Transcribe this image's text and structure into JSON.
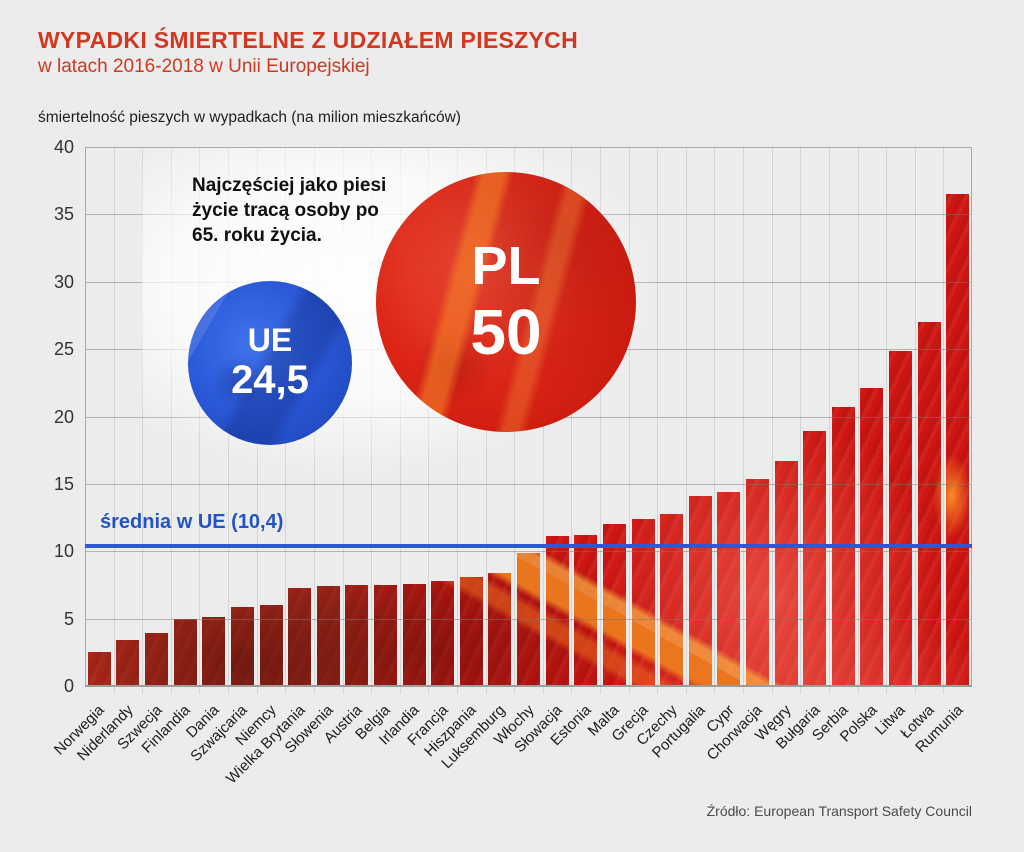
{
  "header": {
    "title": "WYPADKI ŚMIERTELNE Z UDZIAŁEM PIESZYCH",
    "subtitle": "w latach 2016-2018 w Unii Europejskiej"
  },
  "axis_note": "śmiertelność pieszych w wypadkach (na milion mieszkańców)",
  "annotation": {
    "text": "Najczęściej jako piesi\nżycie tracą osoby po\n65. roku życia."
  },
  "badges": {
    "eu": {
      "label": "UE",
      "value": "24,5"
    },
    "pl": {
      "label": "PL",
      "value": "50"
    }
  },
  "average_line": {
    "label": "średnia w UE (10,4)",
    "value": 10.4
  },
  "source": "Źródło: European Transport Safety Council",
  "colors": {
    "accent_red": "#d2371f",
    "bar_red": "#ce1511",
    "average_blue": "#2b58d6",
    "background": "#ececec"
  },
  "chart_data": {
    "type": "bar",
    "title": "WYPADKI ŚMIERTELNE Z UDZIAŁEM PIESZYCH w latach 2016-2018 w Unii Europejskiej",
    "xlabel": "",
    "ylabel": "śmiertelność pieszych w wypadkach (na milion mieszkańców)",
    "ylim": [
      0,
      40
    ],
    "ytick_step": 5,
    "grid": true,
    "legend": false,
    "average_reference": 10.4,
    "categories": [
      "Norwegia",
      "Niderlandy",
      "Szwecja",
      "Finlandia",
      "Dania",
      "Szwajcaria",
      "Niemcy",
      "Wielka Brytania",
      "Słowenia",
      "Austria",
      "Belgia",
      "Irlandia",
      "Francja",
      "Hiszpania",
      "Luksemburg",
      "Włochy",
      "Słowacja",
      "Estonia",
      "Malta",
      "Grecja",
      "Czechy",
      "Portugalia",
      "Cypr",
      "Chorwacja",
      "Węgry",
      "Bułgaria",
      "Serbia",
      "Polska",
      "Litwa",
      "Łotwa",
      "Rumunia"
    ],
    "values": [
      2.5,
      3.4,
      3.9,
      5.0,
      5.1,
      5.9,
      6.0,
      7.3,
      7.4,
      7.5,
      7.5,
      7.6,
      7.8,
      8.1,
      8.4,
      9.9,
      11.1,
      11.2,
      12.0,
      12.4,
      12.8,
      14.1,
      14.4,
      15.4,
      16.7,
      18.9,
      20.7,
      22.1,
      24.9,
      27.0,
      36.5
    ]
  }
}
